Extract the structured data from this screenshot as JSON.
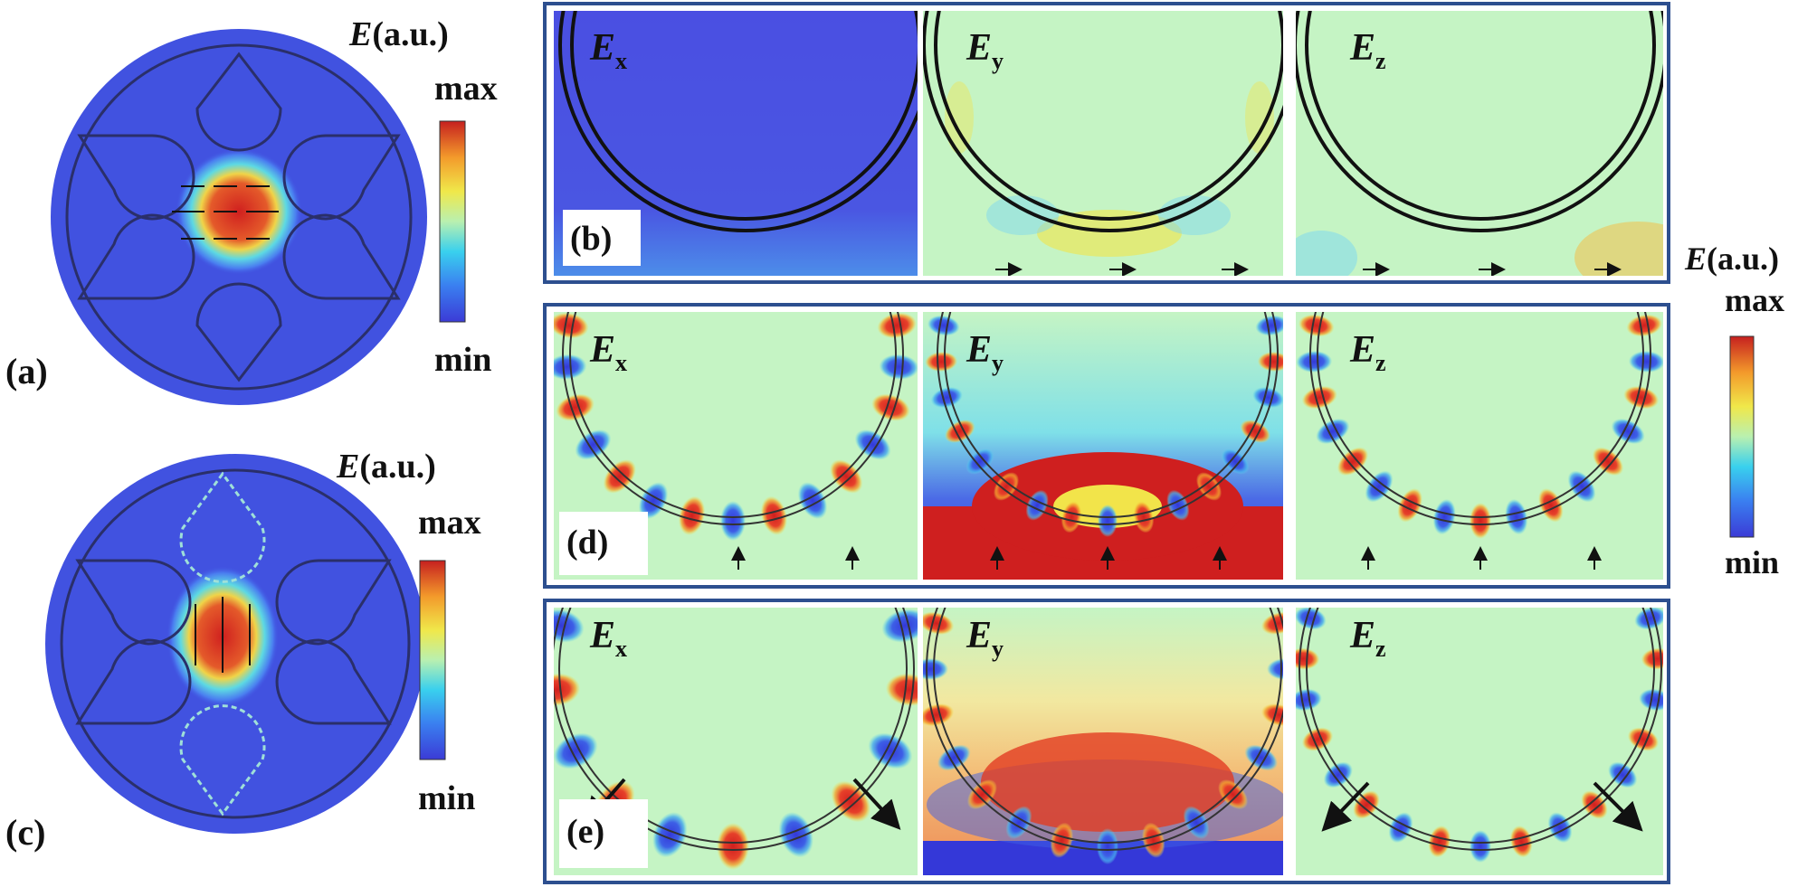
{
  "colorbar": {
    "title_symbol": "E",
    "title_unit": "(a.u.)",
    "max_label": "max",
    "min_label": "min",
    "colors": [
      "#3b3bd6",
      "#3a7ff0",
      "#39d0ee",
      "#b9f0b0",
      "#f0e84a",
      "#f39a2b",
      "#c6201f"
    ]
  },
  "panels": {
    "a": {
      "label": "(a)"
    },
    "b": {
      "label": "(b)",
      "fields": [
        "E",
        "E",
        "E"
      ],
      "subs": [
        "x",
        "y",
        "z"
      ]
    },
    "c": {
      "label": "(c)"
    },
    "d": {
      "label": "(d)",
      "fields": [
        "E",
        "E",
        "E"
      ],
      "subs": [
        "x",
        "y",
        "z"
      ]
    },
    "e": {
      "label": "(e)",
      "fields": [
        "E",
        "E",
        "E"
      ],
      "subs": [
        "x",
        "y",
        "z"
      ]
    }
  },
  "colors": {
    "frame": "#2d4f8f",
    "background_blue": "#4152e0",
    "neutral_green": "#c5f4c4",
    "hot_red": "#cf1f1f",
    "cold_blue": "#3438d8",
    "mid_yellow": "#f2e44a"
  }
}
